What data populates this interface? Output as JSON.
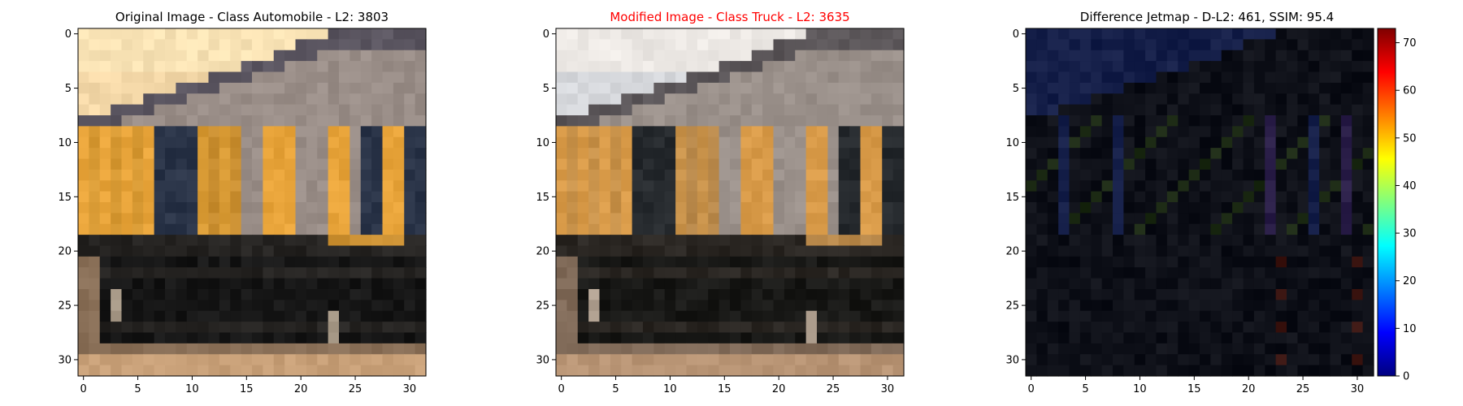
{
  "chart_data": [
    {
      "type": "image",
      "title": "Original Image - Class Automobile - L2: 3803",
      "title_color": "#000000",
      "xlim": [
        -0.5,
        31.5
      ],
      "ylim": [
        31.5,
        -0.5
      ],
      "xticks": [
        0,
        5,
        10,
        15,
        20,
        25,
        30
      ],
      "yticks": [
        0,
        5,
        10,
        15,
        20,
        25,
        30
      ],
      "palette": {
        "sky": "#f4d8a8",
        "sky_bright": "#f8e2b4",
        "roof": "#9a8e88",
        "roof_dark": "#5a5560",
        "stripe": "#3a3c48",
        "panel": "#e8a43a",
        "panel_b": "#d89a34",
        "panel_c": "#c98e30",
        "dark_panel": "#2a3448",
        "car": "#161616",
        "car_mid": "#262422",
        "ground": "#c8a078",
        "ground_dark": "#8a7058",
        "wheel": "#a89a88"
      }
    },
    {
      "type": "image",
      "title": "Modified Image - Class Truck - L2: 3635",
      "title_color": "#ff0000",
      "xlim": [
        -0.5,
        31.5
      ],
      "ylim": [
        31.5,
        -0.5
      ],
      "xticks": [
        0,
        5,
        10,
        15,
        20,
        25,
        30
      ],
      "yticks": [
        0,
        5,
        10,
        15,
        20,
        25,
        30
      ],
      "palette": {
        "sky": "#d6d8dc",
        "sky_bright": "#ece8e4",
        "roof": "#9a908a",
        "roof_dark": "#5a5558",
        "stripe": "#3a3a3e",
        "panel": "#d89a48",
        "panel_b": "#c8924a",
        "panel_c": "#b8884a",
        "dark_panel": "#262a2e",
        "car": "#181816",
        "car_mid": "#2a2622",
        "ground": "#b89474",
        "ground_dark": "#806a58",
        "wheel": "#b0a090"
      }
    },
    {
      "type": "heatmap",
      "title": "Difference Jetmap - D-L2: 461, SSIM: 95.4",
      "title_color": "#000000",
      "xlim": [
        -0.5,
        31.5
      ],
      "ylim": [
        31.5,
        -0.5
      ],
      "xticks": [
        0,
        5,
        10,
        15,
        20,
        25,
        30
      ],
      "yticks": [
        0,
        5,
        10,
        15,
        20,
        25,
        30
      ],
      "colorbar": {
        "vmin": 0,
        "vmax": 73,
        "ticks": [
          0,
          10,
          20,
          30,
          40,
          50,
          60,
          70
        ],
        "colors": [
          "#00007f",
          "#0000ff",
          "#007fff",
          "#00ffff",
          "#7fff7f",
          "#ffff00",
          "#ff7f00",
          "#ff0000",
          "#7f0000"
        ]
      },
      "palette": {
        "base": "#0e1018",
        "blue": "#141e48",
        "purple": "#2a1e48",
        "red": "#3a1410",
        "green": "#1c2a14"
      }
    }
  ]
}
